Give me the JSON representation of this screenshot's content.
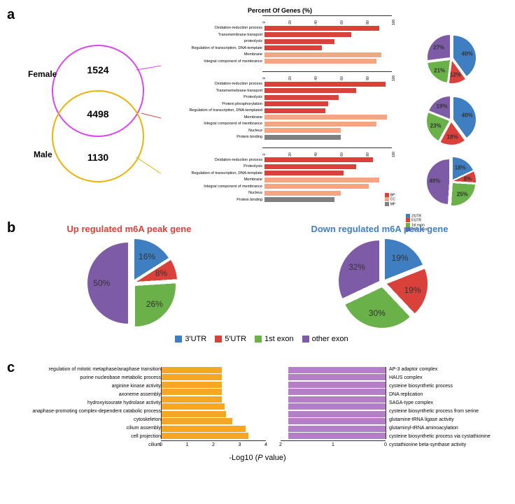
{
  "colors": {
    "utr3": "#3f7fc1",
    "utr5": "#d9413a",
    "exon1": "#6ab14a",
    "other": "#7e5ba6",
    "bp": "#d9413a",
    "cc": "#f4a582",
    "mf": "#808080",
    "female_ring": "#d946ef",
    "male_ring": "#eab308",
    "c_left": "#f5a623",
    "c_right": "#b57fc7"
  },
  "panel_a": {
    "venn": {
      "female_label": "Female",
      "male_label": "Male",
      "top_count": "1524",
      "mid_count": "4498",
      "bot_count": "1130"
    },
    "chart_title": "Percent Of Genes (%)",
    "axis_ticks": [
      "0",
      "20",
      "40",
      "60",
      "80",
      "100"
    ],
    "groups": [
      {
        "bars": [
          {
            "label": "Oxidation-reduction process",
            "value": 90,
            "cat": "bp"
          },
          {
            "label": "Transmembrane transport",
            "value": 68,
            "cat": "bp"
          },
          {
            "label": "proteolysis",
            "value": 55,
            "cat": "bp"
          },
          {
            "label": "Regulation of transcription, DNA-template",
            "value": 45,
            "cat": "bp"
          },
          {
            "label": "Membrane",
            "value": 92,
            "cat": "cc"
          },
          {
            "label": "Integral component of membrance",
            "value": 88,
            "cat": "cc"
          }
        ],
        "pie": [
          {
            "label": "40%",
            "v": 40,
            "c": "utr3"
          },
          {
            "label": "12%",
            "v": 12,
            "c": "utr5"
          },
          {
            "label": "21%",
            "v": 21,
            "c": "exon1"
          },
          {
            "label": "27%",
            "v": 27,
            "c": "other"
          }
        ]
      },
      {
        "bars": [
          {
            "label": "Oxidation-reduction process",
            "value": 95,
            "cat": "bp"
          },
          {
            "label": "Transmemebrane transport",
            "value": 72,
            "cat": "bp"
          },
          {
            "label": "Proteolysis",
            "value": 58,
            "cat": "bp"
          },
          {
            "label": "Protein phosphorylation",
            "value": 50,
            "cat": "bp"
          },
          {
            "label": "Regulation of transcription, DNA-templated",
            "value": 48,
            "cat": "bp"
          },
          {
            "label": "Membrane",
            "value": 96,
            "cat": "cc"
          },
          {
            "label": "Integral component of membrance",
            "value": 88,
            "cat": "cc"
          },
          {
            "label": "Nucleus",
            "value": 60,
            "cat": "cc"
          },
          {
            "label": "Protein binding",
            "value": 60,
            "cat": "mf"
          }
        ],
        "pie": [
          {
            "label": "40%",
            "v": 40,
            "c": "utr3"
          },
          {
            "label": "18%",
            "v": 18,
            "c": "utr5"
          },
          {
            "label": "23%",
            "v": 23,
            "c": "exon1"
          },
          {
            "label": "19%",
            "v": 19,
            "c": "other"
          }
        ]
      },
      {
        "bars": [
          {
            "label": "Oxidation-reduction process",
            "value": 85,
            "cat": "bp"
          },
          {
            "label": "Proteolysis",
            "value": 72,
            "cat": "bp"
          },
          {
            "label": "Regulation of transcription, DNA-template",
            "value": 62,
            "cat": "bp"
          },
          {
            "label": "Membrane",
            "value": 90,
            "cat": "cc"
          },
          {
            "label": "Integral component of membrance",
            "value": 82,
            "cat": "cc"
          },
          {
            "label": "Nucleus",
            "value": 60,
            "cat": "cc"
          },
          {
            "label": "Protein binding",
            "value": 55,
            "cat": "mf"
          }
        ],
        "pie": [
          {
            "label": "18%",
            "v": 18,
            "c": "utr3"
          },
          {
            "label": "8%",
            "v": 8,
            "c": "utr5"
          },
          {
            "label": "25%",
            "v": 25,
            "c": "exon1"
          },
          {
            "label": "49%",
            "v": 49,
            "c": "other"
          }
        ]
      }
    ],
    "cat_legend": [
      {
        "label": "BP",
        "c": "bp"
      },
      {
        "label": "CC",
        "c": "cc"
      },
      {
        "label": "MF",
        "c": "mf"
      }
    ],
    "pie_legend": [
      {
        "label": "3'UTR",
        "c": "utr3"
      },
      {
        "label": "5'UTR",
        "c": "utr5"
      },
      {
        "label": "1st exon",
        "c": "exon1"
      },
      {
        "label": "other exon",
        "c": "other"
      }
    ]
  },
  "panel_b": {
    "left_title": "Up regulated m6A peak gene",
    "right_title": "Down regulated m6A peak gene",
    "left_pie": [
      {
        "label": "16%",
        "v": 16,
        "c": "utr3"
      },
      {
        "label": "8%",
        "v": 8,
        "c": "utr5"
      },
      {
        "label": "26%",
        "v": 26,
        "c": "exon1"
      },
      {
        "label": "50%",
        "v": 50,
        "c": "other"
      }
    ],
    "right_pie": [
      {
        "label": "19%",
        "v": 19,
        "c": "utr3"
      },
      {
        "label": "19%",
        "v": 19,
        "c": "utr5"
      },
      {
        "label": "30%",
        "v": 30,
        "c": "exon1"
      },
      {
        "label": "32%",
        "v": 32,
        "c": "other"
      }
    ],
    "legend": [
      {
        "label": "3'UTR",
        "c": "utr3"
      },
      {
        "label": "5'UTR",
        "c": "utr5"
      },
      {
        "label": "1st exon",
        "c": "exon1"
      },
      {
        "label": "other exon",
        "c": "other"
      }
    ]
  },
  "panel_c": {
    "xlabel": "-Log10 (P value)",
    "max": 4,
    "ticks_left": [
      "0",
      "1",
      "2",
      "3",
      "4"
    ],
    "ticks_right": [
      "2",
      "1",
      "0"
    ],
    "max_right": 2,
    "left": [
      {
        "label": "regulation of mitotic metaphase/anaphase transition",
        "v": 2.3
      },
      {
        "label": "purine nucleobase metabolic process",
        "v": 2.3
      },
      {
        "label": "arginine kinase activity",
        "v": 2.3
      },
      {
        "label": "axoneme assembly",
        "v": 2.3
      },
      {
        "label": "hydroxyisourate hydrolase activity",
        "v": 2.3
      },
      {
        "label": "anaphase-promoting complex-dependent catabolic process",
        "v": 2.4
      },
      {
        "label": "cytoskeleton",
        "v": 2.45
      },
      {
        "label": "cilium assembly",
        "v": 2.7
      },
      {
        "label": "cell projection",
        "v": 3.2
      },
      {
        "label": "cilium",
        "v": 3.3
      }
    ],
    "right": [
      {
        "label": "AP-3 adaptor complex",
        "v": 1.85
      },
      {
        "label": "HAUS complex",
        "v": 1.85
      },
      {
        "label": "cysteine biosynthetic process",
        "v": 1.85
      },
      {
        "label": "DNA replication",
        "v": 1.85
      },
      {
        "label": "SAGA-type complex",
        "v": 1.85
      },
      {
        "label": "cysteine biosynthetic process from serine",
        "v": 1.85
      },
      {
        "label": "glutamine-tRNA ligase activity",
        "v": 1.85
      },
      {
        "label": "glutaminyl-tRNA aminoacylation",
        "v": 1.85
      },
      {
        "label": "cysteine biosynthetic process via cystathionine",
        "v": 1.85
      },
      {
        "label": "cystathionine beta-synthase activity",
        "v": 1.85
      }
    ]
  }
}
